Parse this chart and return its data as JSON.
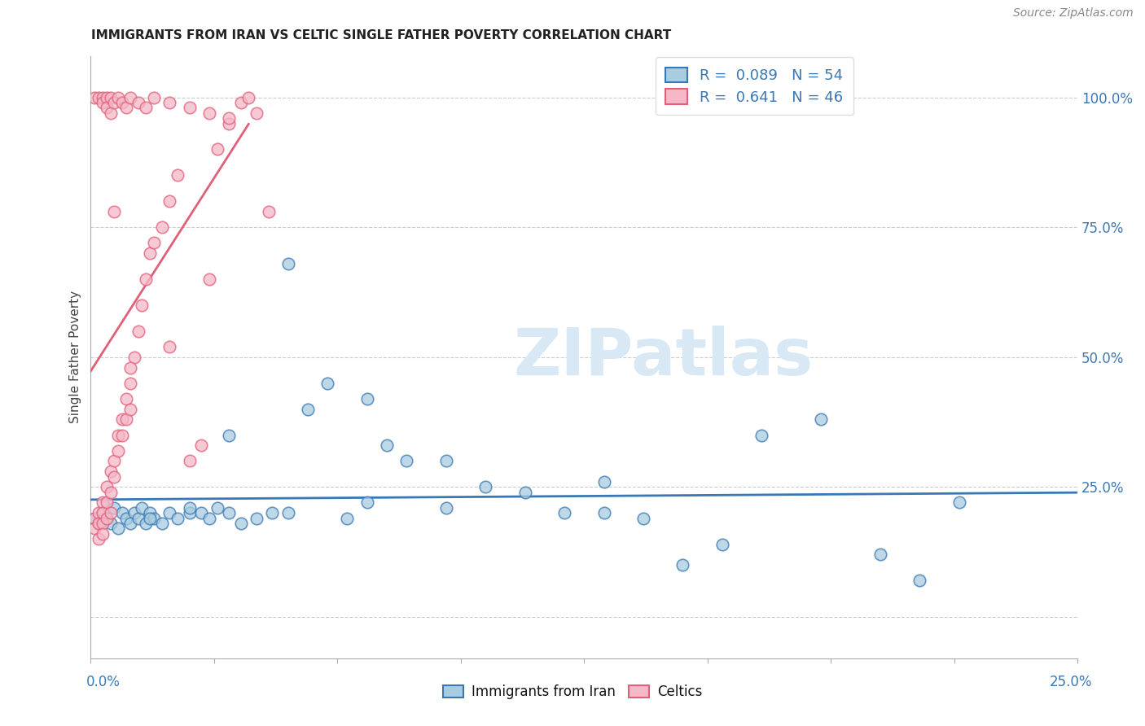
{
  "title": "IMMIGRANTS FROM IRAN VS CELTIC SINGLE FATHER POVERTY CORRELATION CHART",
  "source": "Source: ZipAtlas.com",
  "ylabel": "Single Father Poverty",
  "xmin": 0.0,
  "xmax": 0.25,
  "ymin": -0.08,
  "ymax": 1.08,
  "legend1_label": "Immigrants from Iran",
  "legend2_label": "Celtics",
  "R1": "0.089",
  "N1": "54",
  "R2": "0.641",
  "N2": "46",
  "color_blue": "#a8cce0",
  "color_pink": "#f5b8c8",
  "color_trendline_blue": "#3a78b5",
  "color_trendline_pink": "#e0607a",
  "watermark_color": "#d8e8f4",
  "title_color": "#222222",
  "axis_label_color": "#3a78b5",
  "blue_scatter_x": [
    0.001,
    0.002,
    0.003,
    0.004,
    0.005,
    0.006,
    0.007,
    0.008,
    0.009,
    0.01,
    0.011,
    0.012,
    0.013,
    0.014,
    0.015,
    0.016,
    0.018,
    0.02,
    0.022,
    0.025,
    0.028,
    0.03,
    0.032,
    0.035,
    0.038,
    0.042,
    0.046,
    0.05,
    0.055,
    0.06,
    0.065,
    0.07,
    0.075,
    0.08,
    0.09,
    0.1,
    0.11,
    0.12,
    0.13,
    0.14,
    0.15,
    0.16,
    0.17,
    0.185,
    0.2,
    0.21,
    0.22,
    0.13,
    0.09,
    0.07,
    0.05,
    0.035,
    0.025,
    0.015
  ],
  "blue_scatter_y": [
    0.19,
    0.18,
    0.2,
    0.19,
    0.18,
    0.21,
    0.17,
    0.2,
    0.19,
    0.18,
    0.2,
    0.19,
    0.21,
    0.18,
    0.2,
    0.19,
    0.18,
    0.2,
    0.19,
    0.2,
    0.2,
    0.19,
    0.21,
    0.2,
    0.18,
    0.19,
    0.2,
    0.68,
    0.4,
    0.45,
    0.19,
    0.22,
    0.33,
    0.3,
    0.21,
    0.25,
    0.24,
    0.2,
    0.2,
    0.19,
    0.1,
    0.14,
    0.35,
    0.38,
    0.12,
    0.07,
    0.22,
    0.26,
    0.3,
    0.42,
    0.2,
    0.35,
    0.21,
    0.19
  ],
  "pink_scatter_x": [
    0.001,
    0.001,
    0.002,
    0.002,
    0.002,
    0.003,
    0.003,
    0.003,
    0.003,
    0.004,
    0.004,
    0.004,
    0.005,
    0.005,
    0.005,
    0.006,
    0.006,
    0.007,
    0.007,
    0.008,
    0.008,
    0.009,
    0.009,
    0.01,
    0.01,
    0.011,
    0.012,
    0.013,
    0.014,
    0.015,
    0.016,
    0.018,
    0.02,
    0.022,
    0.025,
    0.028,
    0.03,
    0.032,
    0.035,
    0.038,
    0.04,
    0.042,
    0.045,
    0.02,
    0.01,
    0.006
  ],
  "pink_scatter_y": [
    0.19,
    0.17,
    0.2,
    0.18,
    0.15,
    0.22,
    0.2,
    0.18,
    0.16,
    0.25,
    0.22,
    0.19,
    0.28,
    0.24,
    0.2,
    0.3,
    0.27,
    0.35,
    0.32,
    0.38,
    0.35,
    0.42,
    0.38,
    0.45,
    0.4,
    0.5,
    0.55,
    0.6,
    0.65,
    0.7,
    0.72,
    0.75,
    0.8,
    0.85,
    0.3,
    0.33,
    0.65,
    0.9,
    0.95,
    0.99,
    1.0,
    0.97,
    0.78,
    0.52,
    0.48,
    0.78
  ],
  "pink_scatter_top_x": [
    0.001,
    0.002,
    0.003,
    0.003,
    0.004,
    0.004,
    0.005,
    0.005,
    0.006,
    0.007,
    0.008,
    0.009,
    0.01,
    0.012,
    0.014,
    0.016,
    0.02,
    0.025,
    0.03,
    0.035
  ],
  "pink_scatter_top_y": [
    1.0,
    1.0,
    1.0,
    0.99,
    1.0,
    0.98,
    1.0,
    0.97,
    0.99,
    1.0,
    0.99,
    0.98,
    1.0,
    0.99,
    0.98,
    1.0,
    0.99,
    0.98,
    0.97,
    0.96
  ]
}
